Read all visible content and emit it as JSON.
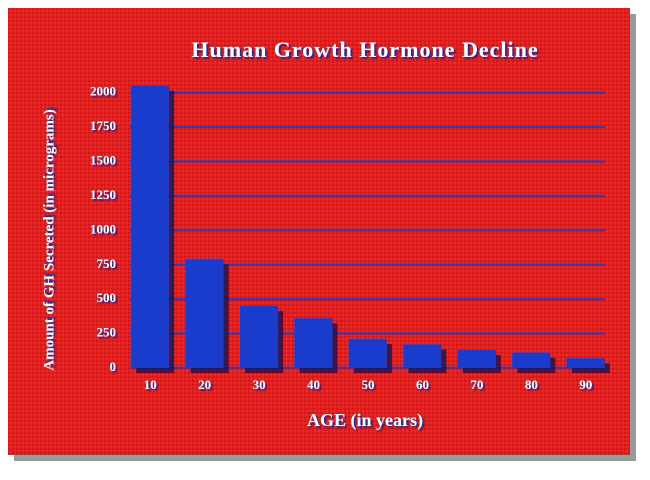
{
  "chart_data": {
    "type": "bar",
    "title": "Human Growth Hormone Decline",
    "x_label": "AGE (in years)",
    "y_label": "Amount of GH Secreted (in micrograms)",
    "categories": [
      "10",
      "20",
      "30",
      "40",
      "50",
      "60",
      "70",
      "80",
      "90"
    ],
    "values": [
      2050,
      790,
      450,
      360,
      210,
      170,
      130,
      110,
      70
    ],
    "color": "#1a3ccc",
    "ylim": [
      0,
      2100
    ],
    "yticks": [
      0,
      250,
      500,
      750,
      1000,
      1250,
      1500,
      1750,
      2000
    ],
    "grid": true
  }
}
